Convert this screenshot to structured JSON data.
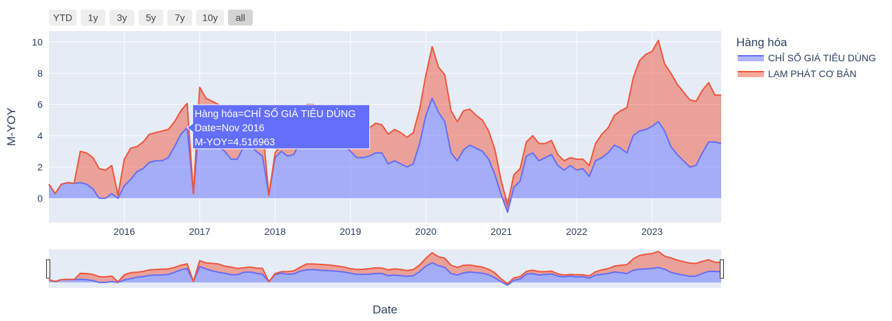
{
  "range_selector": {
    "buttons": [
      "YTD",
      "1y",
      "3y",
      "5y",
      "7y",
      "10y",
      "all"
    ],
    "active": "all"
  },
  "legend": {
    "title": "Hàng hóa",
    "placement": "right-top"
  },
  "hover": {
    "lines": [
      "Hàng hóa=CHỈ SỐ GIÁ TIÊU DÙNG",
      "Date=Nov 2016",
      "M-YOY=4.516963"
    ],
    "x_index": 22
  },
  "colors": {
    "cpi_line": "#636efa",
    "cpi_fill": "rgba(99,110,250,0.5)",
    "core_line": "#ef553b",
    "core_fill": "rgba(239,85,59,0.5)",
    "plot_bg": "#e5ecf6",
    "tooltip_bg": "#636efa"
  },
  "chart_data": {
    "type": "area",
    "stacked": true,
    "xlabel": "Date",
    "ylabel": "M-YOY",
    "ylim": [
      -1.55,
      10.7
    ],
    "yticks": [
      0,
      2,
      4,
      6,
      8,
      10
    ],
    "xticks": [
      "2016",
      "2017",
      "2018",
      "2019",
      "2020",
      "2021",
      "2022",
      "2023"
    ],
    "xlim": [
      "2015-01",
      "2023-12"
    ],
    "grid": true,
    "rangeslider": true,
    "x": [
      "2015-01",
      "2015-02",
      "2015-03",
      "2015-04",
      "2015-05",
      "2015-06",
      "2015-07",
      "2015-08",
      "2015-09",
      "2015-10",
      "2015-11",
      "2015-12",
      "2016-01",
      "2016-02",
      "2016-03",
      "2016-04",
      "2016-05",
      "2016-06",
      "2016-07",
      "2016-08",
      "2016-09",
      "2016-10",
      "2016-11",
      "2016-12",
      "2017-01",
      "2017-02",
      "2017-03",
      "2017-04",
      "2017-05",
      "2017-06",
      "2017-07",
      "2017-08",
      "2017-09",
      "2017-10",
      "2017-11",
      "2017-12",
      "2018-01",
      "2018-02",
      "2018-03",
      "2018-04",
      "2018-05",
      "2018-06",
      "2018-07",
      "2018-08",
      "2018-09",
      "2018-10",
      "2018-11",
      "2018-12",
      "2019-01",
      "2019-02",
      "2019-03",
      "2019-04",
      "2019-05",
      "2019-06",
      "2019-07",
      "2019-08",
      "2019-09",
      "2019-10",
      "2019-11",
      "2019-12",
      "2020-01",
      "2020-02",
      "2020-03",
      "2020-04",
      "2020-05",
      "2020-06",
      "2020-07",
      "2020-08",
      "2020-09",
      "2020-10",
      "2020-11",
      "2020-12",
      "2021-01",
      "2021-02",
      "2021-03",
      "2021-04",
      "2021-05",
      "2021-06",
      "2021-07",
      "2021-08",
      "2021-09",
      "2021-10",
      "2021-11",
      "2021-12",
      "2022-01",
      "2022-02",
      "2022-03",
      "2022-04",
      "2022-05",
      "2022-06",
      "2022-07",
      "2022-08",
      "2022-09",
      "2022-10",
      "2022-11",
      "2022-12",
      "2023-01",
      "2023-02",
      "2023-03",
      "2023-04",
      "2023-05",
      "2023-06",
      "2023-07",
      "2023-08",
      "2023-09",
      "2023-10",
      "2023-11",
      "2023-12"
    ],
    "series": [
      {
        "name": "CHỈ SỐ GIÁ TIÊU DÙNG",
        "values": [
          0.9,
          0.3,
          0.9,
          1.0,
          0.95,
          1.0,
          0.9,
          0.6,
          0.0,
          0.0,
          0.3,
          0.0,
          0.8,
          1.2,
          1.7,
          1.9,
          2.3,
          2.4,
          2.4,
          2.6,
          3.3,
          4.1,
          4.516963,
          0.3,
          5.2,
          4.4,
          3.8,
          3.3,
          3.0,
          2.5,
          2.5,
          3.3,
          3.4,
          3.0,
          2.7,
          0.2,
          2.6,
          3.0,
          2.7,
          2.8,
          3.7,
          4.1,
          4.2,
          4.0,
          3.9,
          3.8,
          3.6,
          3.4,
          3.0,
          2.6,
          2.6,
          2.7,
          2.9,
          2.9,
          2.2,
          2.4,
          2.2,
          2.0,
          2.2,
          3.5,
          5.3,
          6.4,
          5.5,
          4.9,
          2.9,
          2.4,
          3.1,
          3.4,
          3.2,
          3.0,
          2.5,
          1.5,
          0.2,
          -0.9,
          0.7,
          1.1,
          2.7,
          2.9,
          2.4,
          2.6,
          2.8,
          2.1,
          1.8,
          2.1,
          1.8,
          1.9,
          1.4,
          2.4,
          2.6,
          2.9,
          3.4,
          3.2,
          2.9,
          4.0,
          4.3,
          4.4,
          4.6,
          4.9,
          4.3,
          3.3,
          2.8,
          2.4,
          2.0,
          2.1,
          2.9,
          3.6,
          3.6,
          3.5
        ]
      },
      {
        "name": "LẠM PHÁT CƠ BẢN",
        "values": [
          0.0,
          0.0,
          0.0,
          0.0,
          0.0,
          2.0,
          2.0,
          2.0,
          1.9,
          1.8,
          1.8,
          0.2,
          1.7,
          2.0,
          1.6,
          1.7,
          1.8,
          1.8,
          1.9,
          1.8,
          1.6,
          1.5,
          1.55,
          0.0,
          1.9,
          2.0,
          2.4,
          2.7,
          2.3,
          2.5,
          2.1,
          1.5,
          1.6,
          1.7,
          1.9,
          0.0,
          0.3,
          0.5,
          0.8,
          1.0,
          1.3,
          1.9,
          1.8,
          1.9,
          1.9,
          1.8,
          1.7,
          1.6,
          1.5,
          1.6,
          1.7,
          1.8,
          1.9,
          1.8,
          1.9,
          2.0,
          2.0,
          1.9,
          2.0,
          2.2,
          2.6,
          3.3,
          2.9,
          3.0,
          2.7,
          2.5,
          2.5,
          2.3,
          2.1,
          2.0,
          1.8,
          1.6,
          0.9,
          0.5,
          0.8,
          0.8,
          0.9,
          1.1,
          1.1,
          0.9,
          0.9,
          0.7,
          0.6,
          0.5,
          0.7,
          0.6,
          0.7,
          1.1,
          1.5,
          1.6,
          1.9,
          2.4,
          2.9,
          3.7,
          4.5,
          4.8,
          4.8,
          5.2,
          4.3,
          4.7,
          4.5,
          4.4,
          4.3,
          4.1,
          4.0,
          3.8,
          3.0,
          3.1
        ]
      }
    ]
  }
}
